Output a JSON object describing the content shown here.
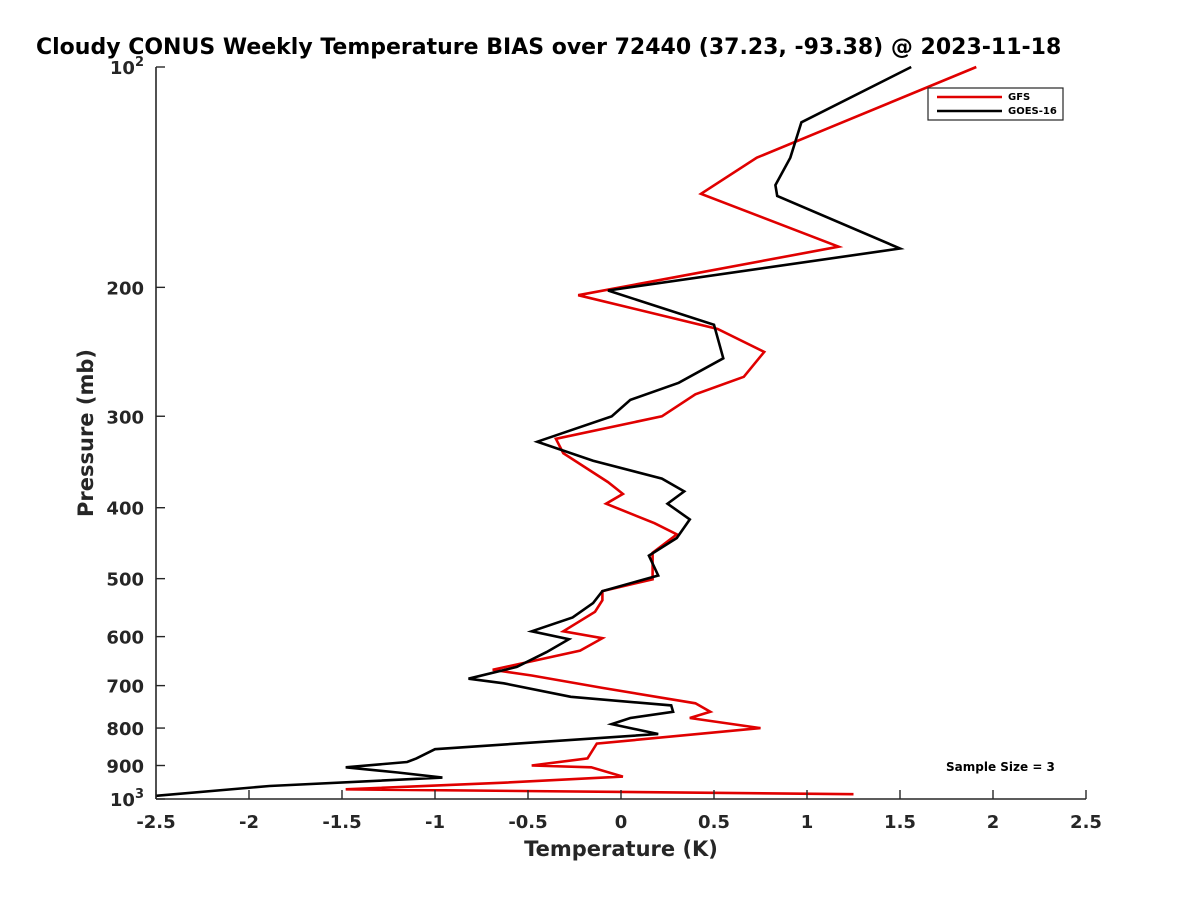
{
  "chart_data": {
    "type": "line",
    "title": "Cloudy CONUS Weekly Temperature BIAS over 72440 (37.23, -93.38) @ 2023-11-18",
    "xlabel": "Temperature (K)",
    "ylabel": "Pressure (mb)",
    "xlim": [
      -2.5,
      2.5
    ],
    "ylim": [
      1000,
      100
    ],
    "y_scale": "log",
    "grid": false,
    "legend_position": "top-right",
    "x_ticks": [
      "-2.5",
      "-2",
      "-1.5",
      "-1",
      "-0.5",
      "0",
      "0.5",
      "1",
      "1.5",
      "2",
      "2.5"
    ],
    "y_ticks": [
      {
        "base": "10",
        "exp": "2"
      },
      {
        "base": "200",
        "exp": ""
      },
      {
        "base": "300",
        "exp": ""
      },
      {
        "base": "400",
        "exp": ""
      },
      {
        "base": "500",
        "exp": ""
      },
      {
        "base": "600",
        "exp": ""
      },
      {
        "base": "700",
        "exp": ""
      },
      {
        "base": "800",
        "exp": ""
      },
      {
        "base": "900",
        "exp": ""
      },
      {
        "base": "10",
        "exp": "3"
      }
    ],
    "annotation": "Sample Size = 3",
    "series": [
      {
        "name": "GFS",
        "color": "#e00000",
        "points": [
          [
            1.91,
            100
          ],
          [
            0.73,
            133
          ],
          [
            0.43,
            149
          ],
          [
            1.17,
            176
          ],
          [
            -0.23,
            205
          ],
          [
            0.52,
            228
          ],
          [
            0.77,
            245
          ],
          [
            0.66,
            265
          ],
          [
            0.4,
            280
          ],
          [
            0.22,
            300
          ],
          [
            -0.35,
            322
          ],
          [
            -0.31,
            337
          ],
          [
            -0.07,
            369
          ],
          [
            0.01,
            383
          ],
          [
            -0.08,
            395
          ],
          [
            0.18,
            420
          ],
          [
            0.3,
            435
          ],
          [
            0.17,
            461
          ],
          [
            0.17,
            501
          ],
          [
            -0.1,
            520
          ],
          [
            -0.1,
            535
          ],
          [
            -0.14,
            555
          ],
          [
            -0.31,
            590
          ],
          [
            -0.1,
            603
          ],
          [
            -0.22,
            627
          ],
          [
            -0.69,
            666
          ],
          [
            -0.48,
            678
          ],
          [
            -0.1,
            705
          ],
          [
            0.4,
            740
          ],
          [
            0.48,
            760
          ],
          [
            0.37,
            775
          ],
          [
            0.75,
            800
          ],
          [
            -0.13,
            840
          ],
          [
            -0.18,
            880
          ],
          [
            -0.48,
            900
          ],
          [
            -0.16,
            905
          ],
          [
            0.01,
            932
          ],
          [
            -0.63,
            950
          ],
          [
            -1.48,
            970
          ],
          [
            1.25,
            985
          ]
        ]
      },
      {
        "name": "GOES-16",
        "color": "#000000",
        "points": [
          [
            1.56,
            100
          ],
          [
            0.97,
            119
          ],
          [
            0.91,
            133
          ],
          [
            0.83,
            145
          ],
          [
            0.84,
            150
          ],
          [
            1.5,
            177
          ],
          [
            -0.07,
            202
          ],
          [
            0.5,
            225
          ],
          [
            0.55,
            250
          ],
          [
            0.31,
            270
          ],
          [
            0.05,
            285
          ],
          [
            -0.05,
            300
          ],
          [
            -0.45,
            325
          ],
          [
            -0.15,
            345
          ],
          [
            0.22,
            365
          ],
          [
            0.34,
            380
          ],
          [
            0.25,
            395
          ],
          [
            0.37,
            415
          ],
          [
            0.3,
            440
          ],
          [
            0.15,
            465
          ],
          [
            0.2,
            495
          ],
          [
            -0.1,
            520
          ],
          [
            -0.15,
            540
          ],
          [
            -0.26,
            565
          ],
          [
            -0.48,
            590
          ],
          [
            -0.28,
            605
          ],
          [
            -0.4,
            630
          ],
          [
            -0.56,
            660
          ],
          [
            -0.82,
            685
          ],
          [
            -0.63,
            695
          ],
          [
            -0.27,
            725
          ],
          [
            0.27,
            745
          ],
          [
            0.28,
            760
          ],
          [
            0.05,
            775
          ],
          [
            -0.05,
            790
          ],
          [
            0.2,
            815
          ],
          [
            -1.0,
            855
          ],
          [
            -1.1,
            880
          ],
          [
            -1.15,
            890
          ],
          [
            -1.48,
            905
          ],
          [
            -1.2,
            920
          ],
          [
            -0.96,
            935
          ],
          [
            -1.89,
            960
          ],
          [
            -2.5,
            990
          ]
        ]
      }
    ]
  }
}
